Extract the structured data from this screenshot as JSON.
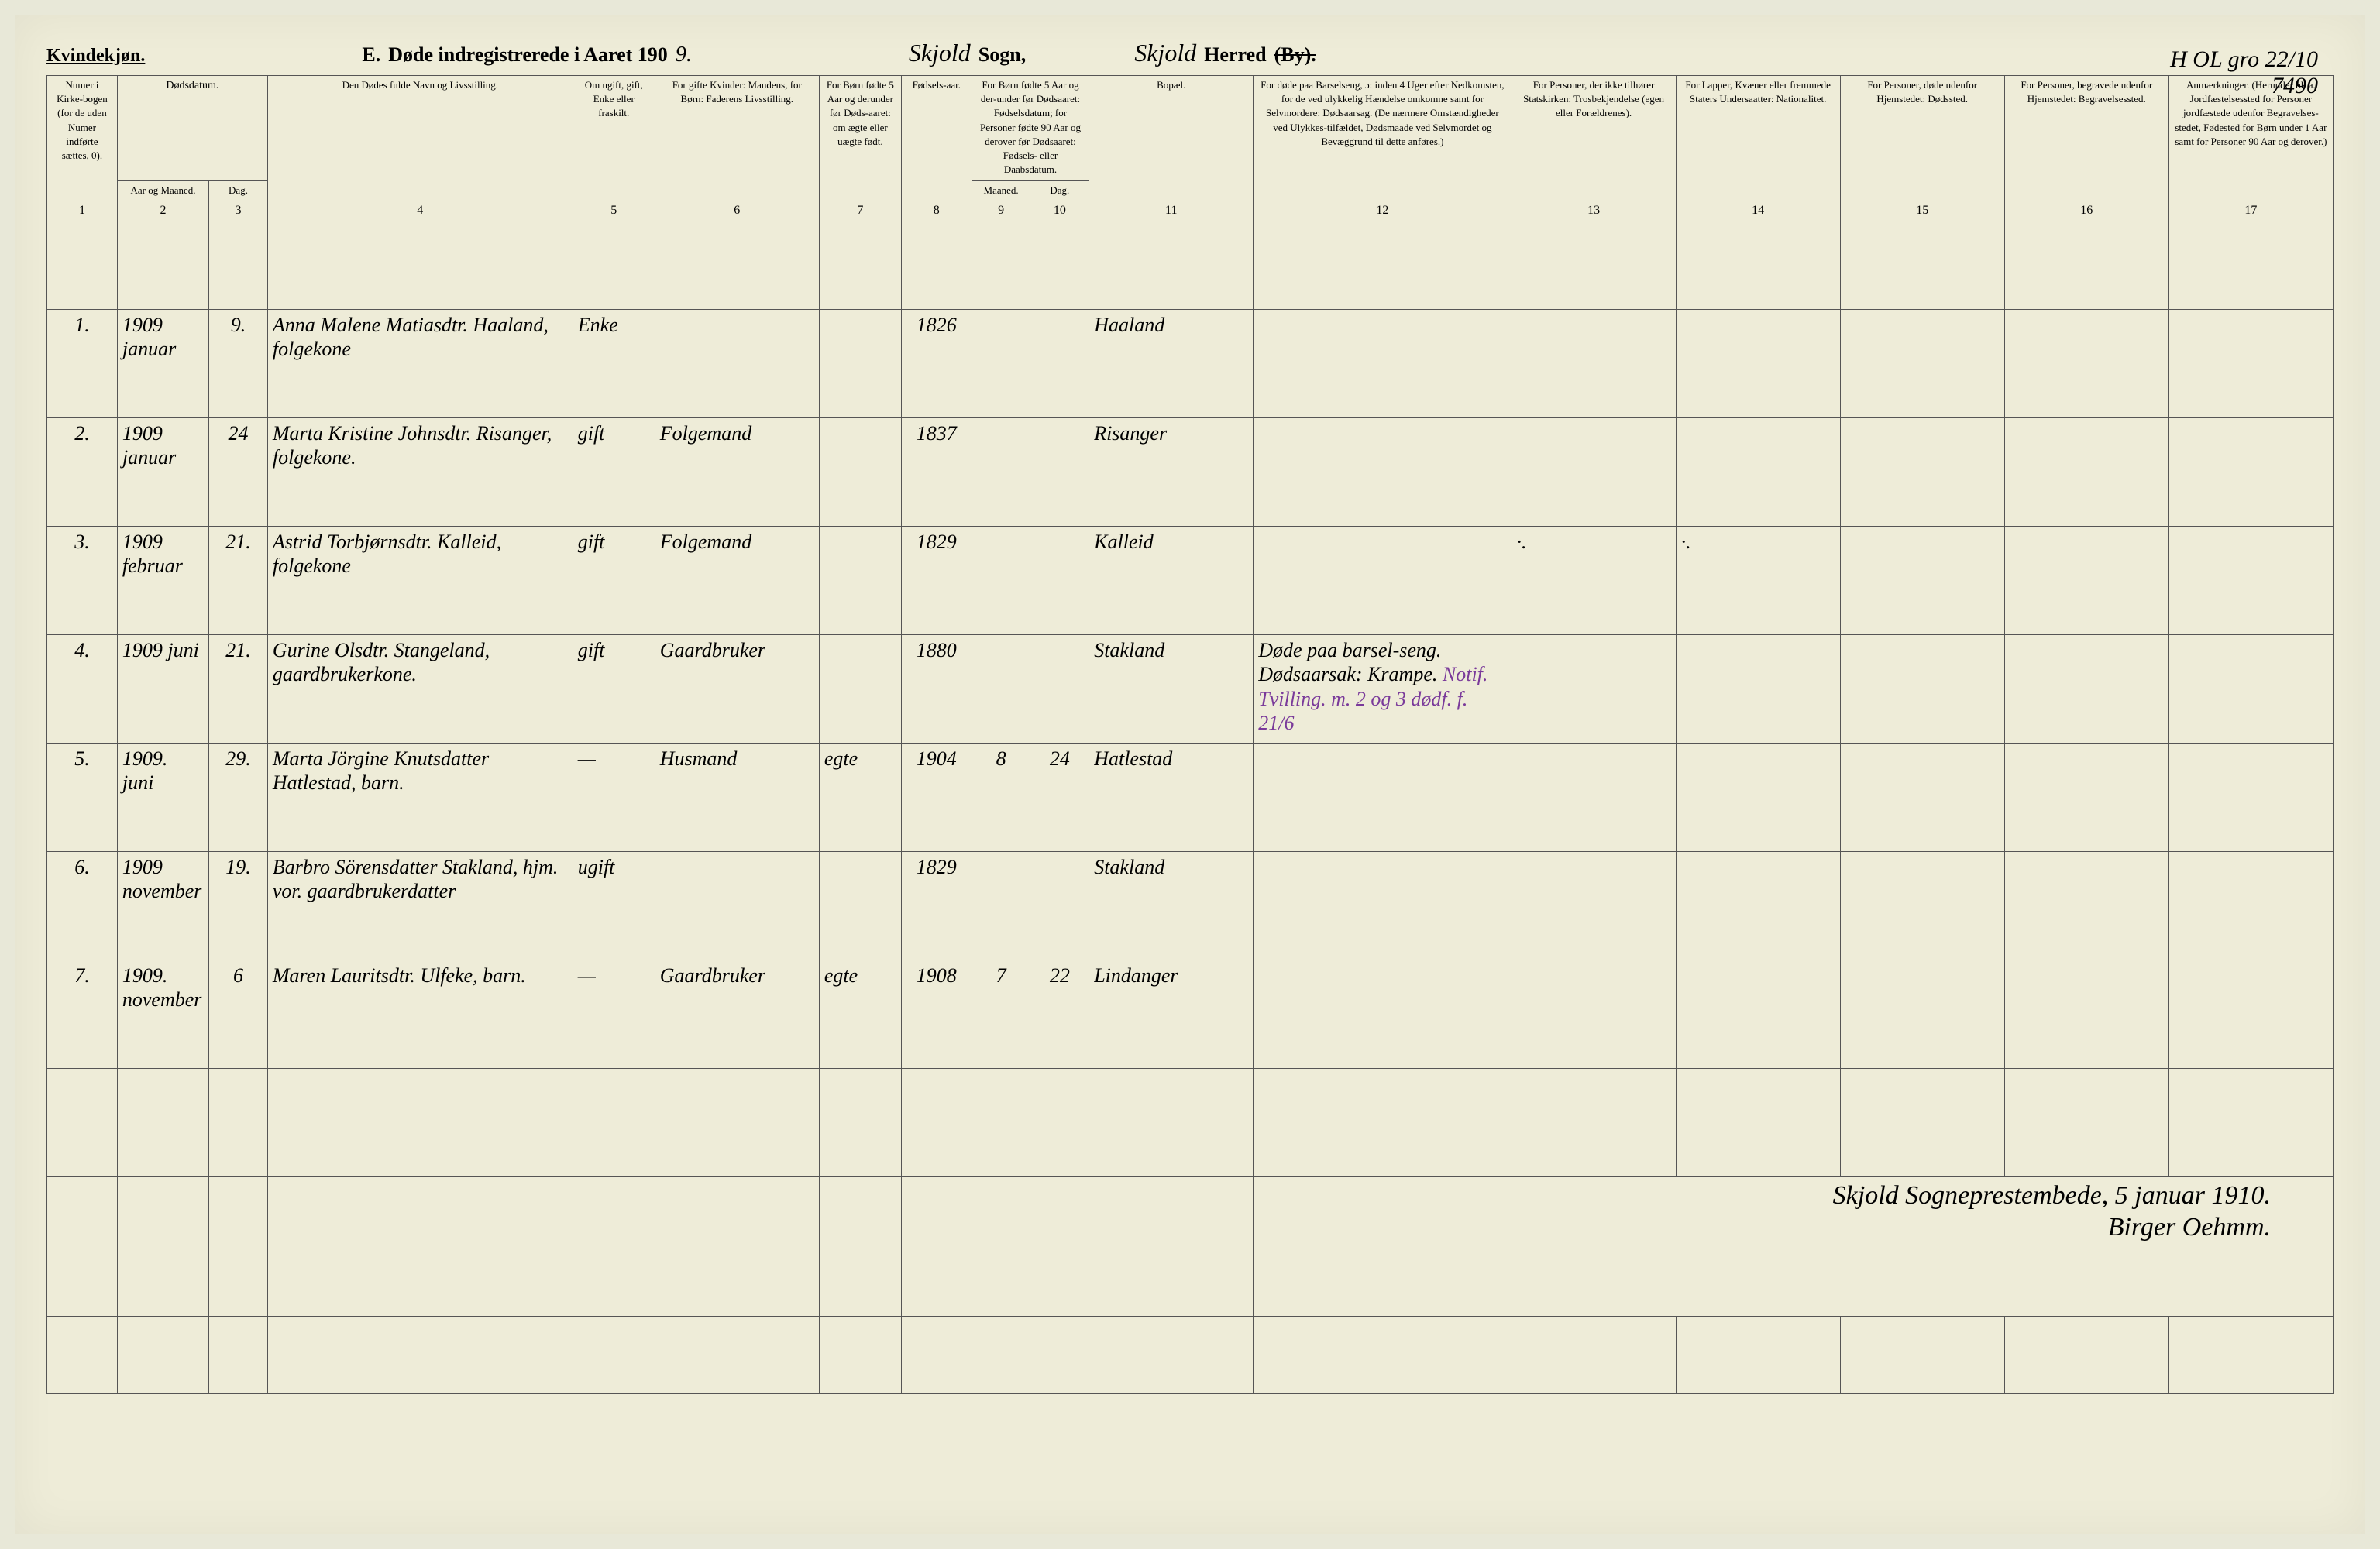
{
  "header": {
    "kvindekjon": "Kvindekjøn.",
    "section_letter": "E.",
    "title_prefix": "Døde indregistrerede i Aaret 190",
    "year_hw": "9.",
    "sogn_hw": "Skjold",
    "sogn_label": "Sogn,",
    "herred_hw": "Skjold",
    "herred_label": "Herred",
    "by_strike": "(By).",
    "top_right_1": "H OL gro 22/10",
    "top_right_2": "7490"
  },
  "columns": [
    {
      "num": "1",
      "text": "Numer i Kirke-bogen (for de uden Numer indførte sættes, 0).",
      "width": "3%"
    },
    {
      "num": "2",
      "text": "Dødsdatum.",
      "sub1": "Aar og Maaned.",
      "width": "3.5%"
    },
    {
      "num": "3",
      "text": "",
      "sub1": "Dag.",
      "width": "2.5%"
    },
    {
      "num": "4",
      "text": "Den Dødes fulde Navn og Livsstilling.",
      "width": "13%"
    },
    {
      "num": "5",
      "text": "Om ugift, gift, Enke eller fraskilt.",
      "width": "3.5%"
    },
    {
      "num": "6",
      "text": "For gifte Kvinder: Mandens, for Børn: Faderens Livsstilling.",
      "width": "7%"
    },
    {
      "num": "7",
      "text": "For Børn fødte 5 Aar og derunder før Døds-aaret: om ægte eller uægte født.",
      "width": "3.5%"
    },
    {
      "num": "8",
      "text": "Fødsels-aar.",
      "width": "3%"
    },
    {
      "num": "9",
      "text": "For Børn fødte 5 Aar og der-under før Dødsaaret: Fødselsdatum; for Personer fødte 90 Aar og derover før Dødsaaret: Fødsels- eller Daabsdatum.",
      "sub1": "Maaned.",
      "width": "2.5%"
    },
    {
      "num": "10",
      "text": "",
      "sub1": "Dag.",
      "width": "2.5%"
    },
    {
      "num": "11",
      "text": "Bopæl.",
      "width": "7%"
    },
    {
      "num": "12",
      "text": "For døde paa Barselseng, ɔ: inden 4 Uger efter Nedkomsten, for de ved ulykkelig Hændelse omkomne samt for Selvmordere: Dødsaarsag. (De nærmere Omstændigheder ved Ulykkes-tilfældet, Dødsmaade ved Selvmordet og Bevæggrund til dette anføres.)",
      "width": "11%"
    },
    {
      "num": "13",
      "text": "For Personer, der ikke tilhører Statskirken: Trosbekjendelse (egen eller Forældrenes).",
      "width": "7%"
    },
    {
      "num": "14",
      "text": "For Lapper, Kvæner eller fremmede Staters Undersaatter: Nationalitet.",
      "width": "7%"
    },
    {
      "num": "15",
      "text": "For Personer, døde udenfor Hjemstedet: Dødssted.",
      "width": "7%"
    },
    {
      "num": "16",
      "text": "For Personer, begravede udenfor Hjemstedet: Begravelsessted.",
      "width": "7%"
    },
    {
      "num": "17",
      "text": "Anmærkninger. (Herunder bl. a. Jordfæstelsessted for Personer jordfæstede udenfor Begravelses-stedet, Fødested for Børn under 1 Aar samt for Personer 90 Aar og derover.)",
      "width": "7%"
    }
  ],
  "rows": [
    {
      "n": "1.",
      "ym": "1909 januar",
      "d": "9.",
      "name": "Anna Malene Matiasdtr. Haaland, folgekone",
      "status": "Enke",
      "parent": "",
      "legit": "",
      "birth": "1826",
      "bm": "",
      "bd": "",
      "place": "Haaland",
      "cause": "",
      "c13": "",
      "c14": "",
      "c15": "",
      "c16": "",
      "c17": ""
    },
    {
      "n": "2.",
      "ym": "1909 januar",
      "d": "24",
      "name": "Marta Kristine Johnsdtr. Risanger, folgekone.",
      "status": "gift",
      "parent": "Folgemand",
      "legit": "",
      "birth": "1837",
      "bm": "",
      "bd": "",
      "place": "Risanger",
      "cause": "",
      "c13": "",
      "c14": "",
      "c15": "",
      "c16": "",
      "c17": ""
    },
    {
      "n": "3.",
      "ym": "1909 februar",
      "d": "21.",
      "name": "Astrid Torbjørnsdtr. Kalleid, folgekone",
      "status": "gift",
      "parent": "Folgemand",
      "legit": "",
      "birth": "1829",
      "bm": "",
      "bd": "",
      "place": "Kalleid",
      "cause": "",
      "c13": "·.",
      "c14": "·.",
      "c15": "",
      "c16": "",
      "c17": ""
    },
    {
      "n": "4.",
      "ym": "1909 juni",
      "d": "21.",
      "name": "Gurine Olsdtr. Stangeland, gaardbrukerkone.",
      "status": "gift",
      "parent": "Gaardbruker",
      "legit": "",
      "birth": "1880",
      "bm": "",
      "bd": "",
      "place": "Stakland",
      "cause": "Døde paa barsel-seng. Dødsaarsak: Krampe.",
      "cause_purple": "Notif. Tvilling. m. 2 og 3 dødf. f. 21/6",
      "c13": "",
      "c14": "",
      "c15": "",
      "c16": "",
      "c17": ""
    },
    {
      "n": "5.",
      "ym": "1909. juni",
      "d": "29.",
      "name": "Marta Jörgine Knutsdatter Hatlestad, barn.",
      "status": "—",
      "parent": "Husmand",
      "legit": "egte",
      "birth": "1904",
      "bm": "8",
      "bd": "24",
      "place": "Hatlestad",
      "cause": "",
      "c13": "",
      "c14": "",
      "c15": "",
      "c16": "",
      "c17": ""
    },
    {
      "n": "6.",
      "ym": "1909 november",
      "d": "19.",
      "name": "Barbro Sörensdatter Stakland, hjm. vor. gaardbrukerdatter",
      "status": "ugift",
      "parent": "",
      "legit": "",
      "birth": "1829",
      "bm": "",
      "bd": "",
      "place": "Stakland",
      "cause": "",
      "c13": "",
      "c14": "",
      "c15": "",
      "c16": "",
      "c17": ""
    },
    {
      "n": "7.",
      "ym": "1909. november",
      "d": "6",
      "name": "Maren Lauritsdtr. Ulfeke, barn.",
      "status": "—",
      "parent": "Gaardbruker",
      "legit": "egte",
      "birth": "1908",
      "bm": "7",
      "bd": "22",
      "place": "Lindanger",
      "cause": "",
      "c13": "",
      "c14": "",
      "c15": "",
      "c16": "",
      "c17": ""
    }
  ],
  "signature": {
    "line1": "Skjold Sogneprestembede, 5 januar 1910.",
    "line2": "Birger Oehmm."
  }
}
